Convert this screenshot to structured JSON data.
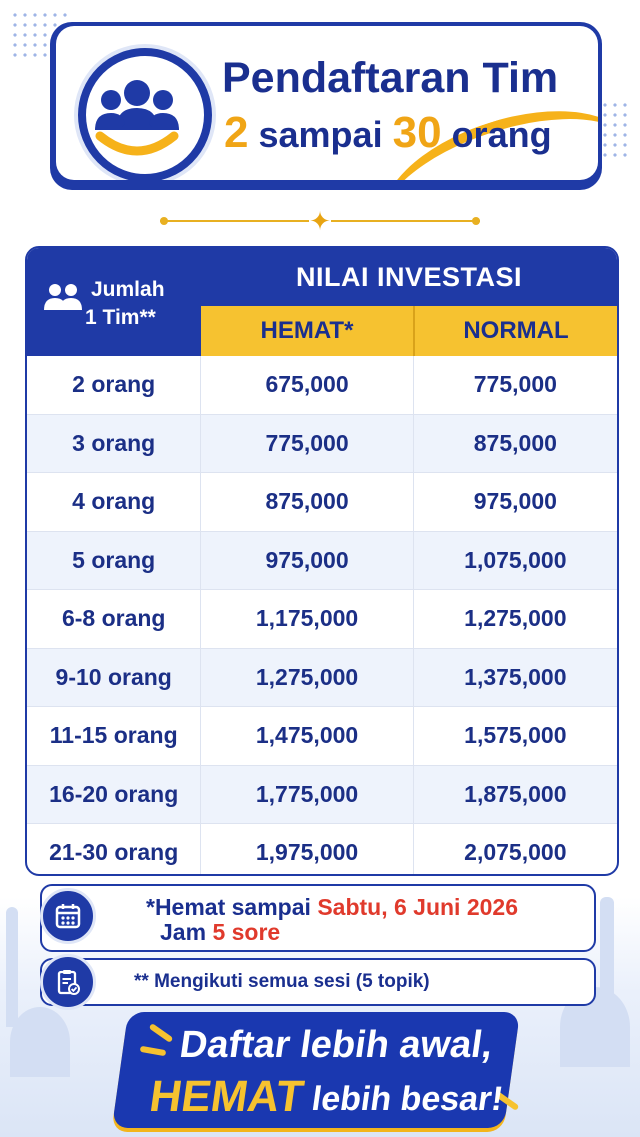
{
  "header": {
    "title": "Pendaftaran Tim",
    "subtitle_min": "2",
    "subtitle_mid": "sampai",
    "subtitle_max": "30",
    "subtitle_unit": "orang",
    "logo_icon": "team-people-icon"
  },
  "table": {
    "col1_header": "Jumlah",
    "col1_header_2": "1 Tim**",
    "group_header": "NILAI INVESTASI",
    "col2_header": "HEMAT*",
    "col3_header": "NORMAL",
    "rows": [
      {
        "size": "2 orang",
        "hemat": "675,000",
        "normal": "775,000"
      },
      {
        "size": "3 orang",
        "hemat": "775,000",
        "normal": "875,000"
      },
      {
        "size": "4 orang",
        "hemat": "875,000",
        "normal": "975,000"
      },
      {
        "size": "5 orang",
        "hemat": "975,000",
        "normal": "1,075,000"
      },
      {
        "size": "6-8 orang",
        "hemat": "1,175,000",
        "normal": "1,275,000"
      },
      {
        "size": "9-10 orang",
        "hemat": "1,275,000",
        "normal": "1,375,000"
      },
      {
        "size": "11-15 orang",
        "hemat": "1,475,000",
        "normal": "1,575,000"
      },
      {
        "size": "16-20 orang",
        "hemat": "1,775,000",
        "normal": "1,875,000"
      },
      {
        "size": "21-30 orang",
        "hemat": "1,975,000",
        "normal": "2,075,000"
      }
    ]
  },
  "notes": {
    "note1_prefix": "*Hemat sampai",
    "note1_date": "Sabtu, 6 Juni 2026",
    "note1_time_prefix": "Jam",
    "note1_time": "5 sore",
    "note1_icon": "calendar-icon",
    "note2_text": "** Mengikuti semua sesi (5 topik)",
    "note2_icon": "clipboard-check-icon"
  },
  "banner": {
    "line1": "Daftar lebih awal,",
    "line2_highlight": "HEMAT",
    "line2_rest": "lebih besar!"
  },
  "colors": {
    "primary": "#1f3aa6",
    "accent": "#f6c230",
    "highlight_red": "#e03a2c"
  }
}
